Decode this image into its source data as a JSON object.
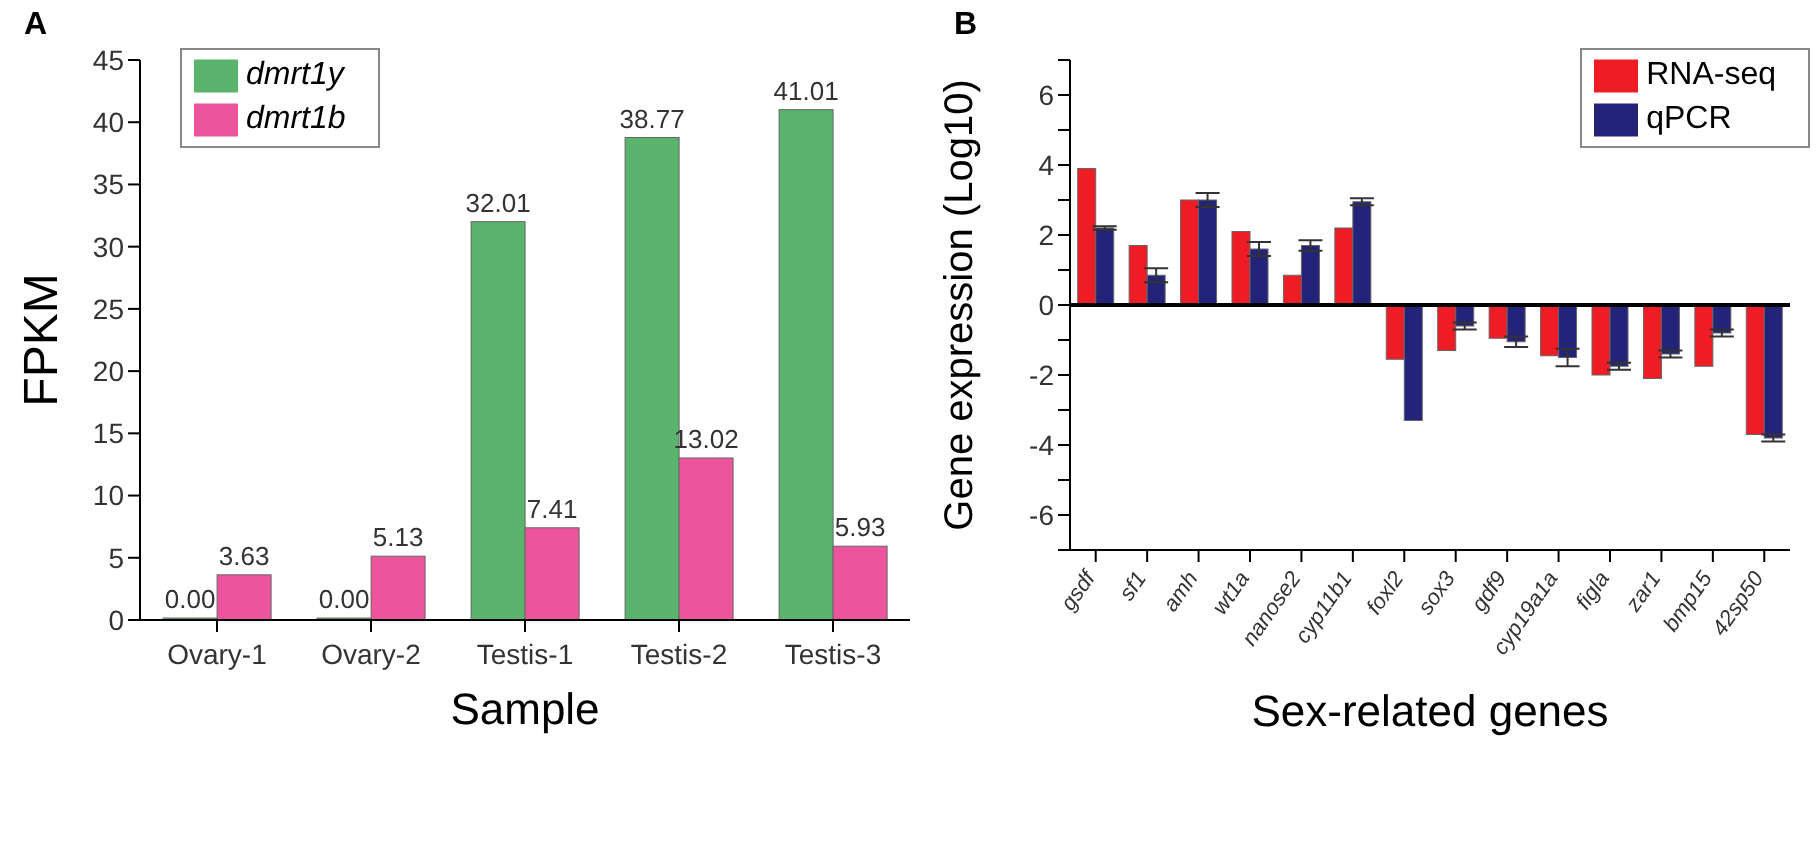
{
  "chart_data": [
    {
      "type": "bar",
      "title": "A",
      "xlabel": "Sample",
      "ylabel": "FPKM",
      "categories": [
        "Ovary-1",
        "Ovary-2",
        "Testis-1",
        "Testis-2",
        "Testis-3"
      ],
      "series": [
        {
          "name": "dmrt1y",
          "color": "#5bb46e",
          "values": [
            0,
            0,
            32.01,
            38.77,
            41.01
          ],
          "value_labels": [
            "0.00",
            "0.00",
            "32.01",
            "38.77",
            "41.01"
          ]
        },
        {
          "name": "dmrt1b",
          "color": "#ec559c",
          "values": [
            3.63,
            5.13,
            7.41,
            13.02,
            5.93
          ],
          "value_labels": [
            "3.63",
            "5.13",
            "7.41",
            "13.02",
            "5.93"
          ]
        }
      ],
      "ylim": [
        0,
        45
      ],
      "yticks": [
        0,
        5,
        10,
        15,
        20,
        25,
        30,
        35,
        40,
        45
      ],
      "grid": false,
      "legend": "top left"
    },
    {
      "type": "bar",
      "title": "B",
      "xlabel": "Sex-related genes",
      "ylabel": "Gene expression (Log10)",
      "categories": [
        "gsdf",
        "sf1",
        "amh",
        "wt1a",
        "nanose2",
        "cyp11b1",
        "foxl2",
        "sox3",
        "gdf9",
        "cyp19a1a",
        "figla",
        "zar1",
        "bmp15",
        "42sp50"
      ],
      "series": [
        {
          "name": "RNA-seq",
          "color": "#ee1c25",
          "values": [
            3.9,
            1.7,
            3.0,
            2.1,
            0.85,
            2.2,
            -1.55,
            -1.3,
            -0.95,
            -1.45,
            -2.0,
            -2.1,
            -1.75,
            -3.7
          ]
        },
        {
          "name": "qPCR",
          "color": "#24237a",
          "values": [
            2.2,
            0.85,
            3.0,
            1.6,
            1.7,
            2.95,
            -3.3,
            -0.6,
            -1.05,
            -1.5,
            -1.75,
            -1.4,
            -0.8,
            -3.8
          ],
          "errors": [
            0.05,
            0.2,
            0.2,
            0.2,
            0.15,
            0.1,
            null,
            0.1,
            0.15,
            0.25,
            0.1,
            0.1,
            0.1,
            0.1
          ]
        }
      ],
      "ylim": [
        -7,
        7
      ],
      "yticks": [
        {
          "value": -7,
          "label": null
        },
        -6,
        {
          "value": -5,
          "label": null
        },
        -4,
        {
          "value": -3,
          "label": null
        },
        -2,
        {
          "value": -1,
          "label": null
        },
        0,
        {
          "value": 1,
          "label": null
        },
        2,
        {
          "value": 3,
          "label": null
        },
        4,
        {
          "value": 5,
          "label": null
        },
        6,
        {
          "value": 7,
          "label": null
        }
      ],
      "ref_lines": [
        {
          "axis": "y",
          "value": 0,
          "color": "#000000"
        }
      ],
      "grid": false,
      "legend": "top right"
    }
  ]
}
